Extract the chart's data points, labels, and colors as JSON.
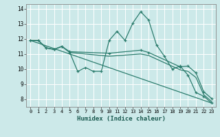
{
  "xlabel": "Humidex (Indice chaleur)",
  "bg_color": "#cce9e9",
  "line_color": "#2d7d6e",
  "grid_color": "#ffffff",
  "xlim": [
    -0.5,
    23.5
  ],
  "ylim": [
    7.5,
    14.3
  ],
  "yticks": [
    8,
    9,
    10,
    11,
    12,
    13,
    14
  ],
  "xticks": [
    0,
    1,
    2,
    3,
    4,
    5,
    6,
    7,
    8,
    9,
    10,
    11,
    12,
    13,
    14,
    15,
    16,
    17,
    18,
    19,
    20,
    21,
    22,
    23
  ],
  "lines": [
    {
      "x": [
        0,
        1,
        2,
        3,
        4,
        5,
        6,
        7,
        8,
        9,
        10,
        11,
        12,
        13,
        14,
        15,
        16,
        17,
        18,
        19,
        20,
        21,
        22,
        23
      ],
      "y": [
        11.9,
        11.9,
        11.4,
        11.3,
        11.5,
        11.1,
        9.85,
        10.1,
        9.85,
        9.85,
        11.9,
        12.5,
        11.9,
        13.05,
        13.8,
        13.25,
        11.6,
        10.85,
        10.0,
        10.2,
        9.6,
        8.45,
        8.2,
        7.75
      ],
      "marker": true
    },
    {
      "x": [
        0,
        1,
        2,
        3,
        4,
        5,
        10,
        14,
        15,
        19,
        20,
        21,
        22,
        23
      ],
      "y": [
        11.9,
        11.9,
        11.4,
        11.3,
        11.5,
        11.15,
        11.05,
        11.25,
        11.1,
        10.15,
        10.2,
        9.75,
        8.5,
        8.05
      ],
      "marker": true
    },
    {
      "x": [
        0,
        1,
        2,
        3,
        4,
        5,
        10,
        14,
        15,
        19,
        20,
        21,
        22,
        23
      ],
      "y": [
        11.9,
        11.9,
        11.4,
        11.3,
        11.5,
        11.1,
        10.85,
        11.0,
        10.9,
        9.95,
        9.85,
        9.45,
        8.3,
        7.85
      ],
      "marker": false
    },
    {
      "x": [
        0,
        23
      ],
      "y": [
        11.9,
        7.75
      ],
      "marker": false
    }
  ],
  "marker_symbol": "+",
  "marker_size": 3,
  "linewidth": 0.9,
  "tick_labelsize": 5.5,
  "xlabel_fontsize": 6.5
}
